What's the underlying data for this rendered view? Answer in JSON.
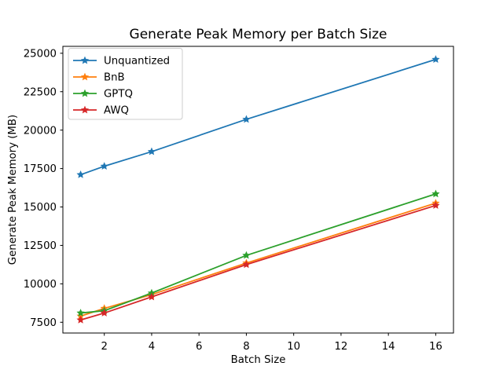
{
  "figure": {
    "background": "#ffffff",
    "text_color": "#000000",
    "spine_color": "#000000",
    "legend_border_color": "#cccccc",
    "legend_background": "#ffffff"
  },
  "chart_data": {
    "type": "line",
    "title": "Generate Peak Memory per Batch Size",
    "xlabel": "Batch Size",
    "ylabel": "Generate Peak Memory (MB)",
    "x": [
      1,
      2,
      4,
      8,
      16
    ],
    "xticks": [
      2,
      4,
      6,
      8,
      10,
      12,
      14,
      16
    ],
    "yticks": [
      7500,
      10000,
      12500,
      15000,
      17500,
      20000,
      22500,
      25000
    ],
    "xlim": [
      0.25,
      16.75
    ],
    "ylim": [
      6800,
      25450
    ],
    "grid": false,
    "marker": "star",
    "legend_position": "upper left",
    "series": [
      {
        "name": "Unquantized",
        "color": "#1f77b4",
        "values": [
          17100,
          17650,
          18600,
          20700,
          24600
        ]
      },
      {
        "name": "BnB",
        "color": "#ff7f0e",
        "values": [
          7900,
          8400,
          9300,
          11350,
          15250
        ]
      },
      {
        "name": "GPTQ",
        "color": "#2ca02c",
        "values": [
          8100,
          8250,
          9400,
          11850,
          15850
        ]
      },
      {
        "name": "AWQ",
        "color": "#d62728",
        "values": [
          7650,
          8100,
          9150,
          11250,
          15100
        ]
      }
    ]
  }
}
